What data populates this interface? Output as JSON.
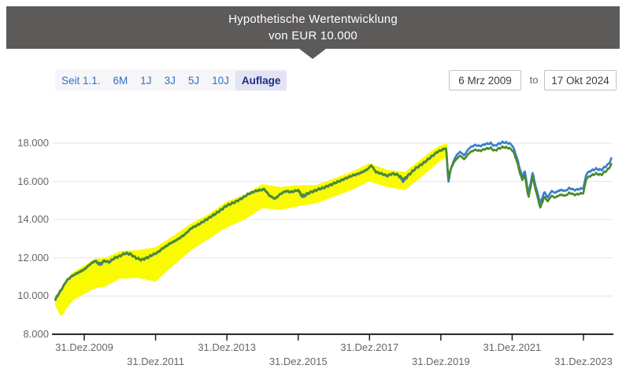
{
  "banner": {
    "title_line1": "Hypothetische Wertentwicklung",
    "title_line2": "von EUR 10.000"
  },
  "controls": {
    "range_buttons": [
      {
        "label": "Seit 1.1.",
        "selected": false
      },
      {
        "label": "6M",
        "selected": false
      },
      {
        "label": "1J",
        "selected": false
      },
      {
        "label": "3J",
        "selected": false
      },
      {
        "label": "5J",
        "selected": false
      },
      {
        "label": "10J",
        "selected": false
      },
      {
        "label": "Auflage",
        "selected": true
      }
    ],
    "date_from": "6 Mrz 2009",
    "date_to_label": "to",
    "date_to": "17 Okt 2024"
  },
  "colors": {
    "banner_bg": "#5d5a5a",
    "button_blue": "#2e6fcf",
    "selected_navy": "#1b2f86",
    "selected_bg": "#e3e3f3",
    "green_line": "#4a8b2c",
    "blue_line": "#3d7dd0",
    "yellow_band": "#fafa00",
    "grid": "#e4e4e4",
    "axis": "#1f1f1f",
    "axis_text": "#63666a"
  },
  "chart_data": {
    "type": "line",
    "title": "Hypothetische Wertentwicklung von EUR 10.000",
    "x_domain_years": [
      2009.18,
      2024.8
    ],
    "y_domain": [
      8000,
      18700
    ],
    "grid": true,
    "legend": "none",
    "y_ticks": [
      {
        "label": "18.000",
        "value": 18000
      },
      {
        "label": "16.000",
        "value": 16000
      },
      {
        "label": "14.000",
        "value": 14000
      },
      {
        "label": "12.000",
        "value": 12000
      },
      {
        "label": "10.000",
        "value": 10000
      },
      {
        "label": "8.000",
        "value": 8000
      }
    ],
    "x_ticks": [
      {
        "label": "31.Dez.2009",
        "year": 2010,
        "row": 1
      },
      {
        "label": "31.Dez.2011",
        "year": 2012,
        "row": 2
      },
      {
        "label": "31.Dez.2013",
        "year": 2014,
        "row": 1
      },
      {
        "label": "31.Dez.2015",
        "year": 2016,
        "row": 2
      },
      {
        "label": "31.Dez.2017",
        "year": 2018,
        "row": 1
      },
      {
        "label": "31.Dez.2019",
        "year": 2020,
        "row": 2
      },
      {
        "label": "31.Dez.2021",
        "year": 2022,
        "row": 1
      },
      {
        "label": "31.Dez.2023",
        "year": 2024,
        "row": 2
      }
    ],
    "band": {
      "id": "yellow-band",
      "points": [
        [
          2009.18,
          9550,
          9900
        ],
        [
          2009.3,
          9050,
          10200
        ],
        [
          2009.38,
          8950,
          10400
        ],
        [
          2009.5,
          9350,
          10900
        ],
        [
          2009.7,
          9800,
          11250
        ],
        [
          2010.0,
          10100,
          11600
        ],
        [
          2010.3,
          10400,
          11950
        ],
        [
          2010.6,
          10500,
          12000
        ],
        [
          2011.0,
          10900,
          12350
        ],
        [
          2011.5,
          10950,
          12400
        ],
        [
          2012.0,
          10750,
          12550
        ],
        [
          2012.5,
          11600,
          13150
        ],
        [
          2013.0,
          12400,
          13800
        ],
        [
          2013.5,
          13000,
          14300
        ],
        [
          2014.0,
          13600,
          14950
        ],
        [
          2014.5,
          14000,
          15300
        ],
        [
          2015.0,
          14600,
          15850
        ],
        [
          2015.5,
          14500,
          15700
        ],
        [
          2016.0,
          14700,
          15800
        ],
        [
          2016.5,
          14850,
          15800
        ],
        [
          2017.0,
          15200,
          16150
        ],
        [
          2017.5,
          15550,
          16500
        ],
        [
          2018.0,
          16000,
          16950
        ],
        [
          2018.5,
          15700,
          16600
        ],
        [
          2019.0,
          15550,
          16500
        ],
        [
          2019.5,
          16300,
          17250
        ],
        [
          2019.9,
          16950,
          17800
        ],
        [
          2020.1,
          17200,
          17950
        ],
        [
          2020.18,
          17300,
          17950
        ]
      ]
    },
    "series": [
      {
        "id": "blue-series",
        "points": [
          [
            2009.18,
            9740
          ],
          [
            2009.25,
            10000
          ],
          [
            2009.36,
            10320
          ],
          [
            2009.5,
            10780
          ],
          [
            2009.65,
            11030
          ],
          [
            2009.8,
            11180
          ],
          [
            2010.0,
            11380
          ],
          [
            2010.15,
            11630
          ],
          [
            2010.3,
            11830
          ],
          [
            2010.45,
            11600
          ],
          [
            2010.55,
            11830
          ],
          [
            2010.7,
            11760
          ],
          [
            2010.85,
            11980
          ],
          [
            2011.0,
            12080
          ],
          [
            2011.15,
            12230
          ],
          [
            2011.3,
            12180
          ],
          [
            2011.45,
            11980
          ],
          [
            2011.6,
            11880
          ],
          [
            2011.75,
            11980
          ],
          [
            2011.9,
            12130
          ],
          [
            2012.05,
            12260
          ],
          [
            2012.2,
            12480
          ],
          [
            2012.4,
            12730
          ],
          [
            2012.6,
            12930
          ],
          [
            2012.8,
            13180
          ],
          [
            2013.0,
            13530
          ],
          [
            2013.25,
            13780
          ],
          [
            2013.5,
            14080
          ],
          [
            2013.75,
            14380
          ],
          [
            2014.0,
            14730
          ],
          [
            2014.2,
            14880
          ],
          [
            2014.4,
            15080
          ],
          [
            2014.6,
            15330
          ],
          [
            2014.8,
            15480
          ],
          [
            2015.05,
            15580
          ],
          [
            2015.2,
            15230
          ],
          [
            2015.35,
            15080
          ],
          [
            2015.5,
            15330
          ],
          [
            2015.65,
            15480
          ],
          [
            2015.8,
            15430
          ],
          [
            2016.0,
            15530
          ],
          [
            2016.12,
            15150
          ],
          [
            2016.3,
            15380
          ],
          [
            2016.5,
            15530
          ],
          [
            2016.75,
            15680
          ],
          [
            2017.0,
            15880
          ],
          [
            2017.25,
            16080
          ],
          [
            2017.5,
            16280
          ],
          [
            2017.75,
            16430
          ],
          [
            2017.95,
            16630
          ],
          [
            2018.05,
            16830
          ],
          [
            2018.18,
            16480
          ],
          [
            2018.35,
            16380
          ],
          [
            2018.5,
            16280
          ],
          [
            2018.65,
            16400
          ],
          [
            2018.8,
            16330
          ],
          [
            2018.95,
            15980
          ],
          [
            2019.1,
            16330
          ],
          [
            2019.3,
            16680
          ],
          [
            2019.5,
            16930
          ],
          [
            2019.7,
            17230
          ],
          [
            2019.9,
            17530
          ],
          [
            2020.08,
            17680
          ],
          [
            2020.15,
            17730
          ],
          [
            2020.21,
            15950
          ],
          [
            2020.27,
            16550
          ],
          [
            2020.35,
            17050
          ],
          [
            2020.45,
            17400
          ],
          [
            2020.55,
            17550
          ],
          [
            2020.65,
            17350
          ],
          [
            2020.8,
            17750
          ],
          [
            2020.95,
            17900
          ],
          [
            2021.1,
            17850
          ],
          [
            2021.25,
            17950
          ],
          [
            2021.4,
            18000
          ],
          [
            2021.5,
            17850
          ],
          [
            2021.6,
            17950
          ],
          [
            2021.75,
            18050
          ],
          [
            2021.9,
            18000
          ],
          [
            2022.0,
            17900
          ],
          [
            2022.1,
            17450
          ],
          [
            2022.28,
            16250
          ],
          [
            2022.35,
            16550
          ],
          [
            2022.46,
            15350
          ],
          [
            2022.57,
            16450
          ],
          [
            2022.68,
            15600
          ],
          [
            2022.79,
            14850
          ],
          [
            2022.9,
            15450
          ],
          [
            2023.0,
            15150
          ],
          [
            2023.1,
            15500
          ],
          [
            2023.2,
            15400
          ],
          [
            2023.35,
            15550
          ],
          [
            2023.5,
            15500
          ],
          [
            2023.6,
            15650
          ],
          [
            2023.75,
            15550
          ],
          [
            2023.9,
            15600
          ],
          [
            2024.0,
            15650
          ],
          [
            2024.08,
            16400
          ],
          [
            2024.2,
            16550
          ],
          [
            2024.35,
            16650
          ],
          [
            2024.5,
            16600
          ],
          [
            2024.6,
            16750
          ],
          [
            2024.7,
            16900
          ],
          [
            2024.8,
            17250
          ]
        ]
      },
      {
        "id": "green-series",
        "points": [
          [
            2009.18,
            9800
          ],
          [
            2009.25,
            10050
          ],
          [
            2009.36,
            10350
          ],
          [
            2009.5,
            10800
          ],
          [
            2009.65,
            11050
          ],
          [
            2009.8,
            11200
          ],
          [
            2010.0,
            11400
          ],
          [
            2010.15,
            11650
          ],
          [
            2010.3,
            11850
          ],
          [
            2010.45,
            11680
          ],
          [
            2010.55,
            11850
          ],
          [
            2010.7,
            11780
          ],
          [
            2010.85,
            12000
          ],
          [
            2011.0,
            12100
          ],
          [
            2011.15,
            12250
          ],
          [
            2011.3,
            12200
          ],
          [
            2011.45,
            12000
          ],
          [
            2011.6,
            11900
          ],
          [
            2011.75,
            12000
          ],
          [
            2011.9,
            12150
          ],
          [
            2012.05,
            12280
          ],
          [
            2012.2,
            12500
          ],
          [
            2012.4,
            12750
          ],
          [
            2012.6,
            12950
          ],
          [
            2012.8,
            13200
          ],
          [
            2013.0,
            13550
          ],
          [
            2013.25,
            13800
          ],
          [
            2013.5,
            14100
          ],
          [
            2013.75,
            14400
          ],
          [
            2014.0,
            14750
          ],
          [
            2014.2,
            14900
          ],
          [
            2014.4,
            15100
          ],
          [
            2014.6,
            15350
          ],
          [
            2014.8,
            15500
          ],
          [
            2015.05,
            15600
          ],
          [
            2015.2,
            15250
          ],
          [
            2015.35,
            15100
          ],
          [
            2015.5,
            15350
          ],
          [
            2015.65,
            15500
          ],
          [
            2015.8,
            15450
          ],
          [
            2016.0,
            15550
          ],
          [
            2016.12,
            15250
          ],
          [
            2016.3,
            15400
          ],
          [
            2016.5,
            15550
          ],
          [
            2016.75,
            15700
          ],
          [
            2017.0,
            15900
          ],
          [
            2017.25,
            16100
          ],
          [
            2017.5,
            16300
          ],
          [
            2017.75,
            16450
          ],
          [
            2017.95,
            16650
          ],
          [
            2018.05,
            16850
          ],
          [
            2018.18,
            16500
          ],
          [
            2018.35,
            16400
          ],
          [
            2018.5,
            16300
          ],
          [
            2018.65,
            16420
          ],
          [
            2018.8,
            16350
          ],
          [
            2018.95,
            16100
          ],
          [
            2019.1,
            16350
          ],
          [
            2019.3,
            16700
          ],
          [
            2019.5,
            16950
          ],
          [
            2019.7,
            17250
          ],
          [
            2019.9,
            17550
          ],
          [
            2020.08,
            17700
          ],
          [
            2020.15,
            17750
          ],
          [
            2020.21,
            16150
          ],
          [
            2020.27,
            16600
          ],
          [
            2020.35,
            16950
          ],
          [
            2020.45,
            17200
          ],
          [
            2020.55,
            17350
          ],
          [
            2020.65,
            17150
          ],
          [
            2020.8,
            17500
          ],
          [
            2020.95,
            17650
          ],
          [
            2021.1,
            17600
          ],
          [
            2021.25,
            17700
          ],
          [
            2021.4,
            17750
          ],
          [
            2021.5,
            17600
          ],
          [
            2021.6,
            17700
          ],
          [
            2021.75,
            17800
          ],
          [
            2021.9,
            17750
          ],
          [
            2022.0,
            17650
          ],
          [
            2022.1,
            17250
          ],
          [
            2022.28,
            16050
          ],
          [
            2022.35,
            16350
          ],
          [
            2022.46,
            15150
          ],
          [
            2022.57,
            16250
          ],
          [
            2022.68,
            15400
          ],
          [
            2022.79,
            14600
          ],
          [
            2022.9,
            15200
          ],
          [
            2023.0,
            14950
          ],
          [
            2023.1,
            15250
          ],
          [
            2023.2,
            15150
          ],
          [
            2023.35,
            15300
          ],
          [
            2023.5,
            15250
          ],
          [
            2023.6,
            15400
          ],
          [
            2023.75,
            15300
          ],
          [
            2023.9,
            15350
          ],
          [
            2024.0,
            15400
          ],
          [
            2024.08,
            16150
          ],
          [
            2024.2,
            16300
          ],
          [
            2024.35,
            16400
          ],
          [
            2024.5,
            16350
          ],
          [
            2024.6,
            16500
          ],
          [
            2024.7,
            16650
          ],
          [
            2024.8,
            16950
          ]
        ]
      }
    ]
  }
}
